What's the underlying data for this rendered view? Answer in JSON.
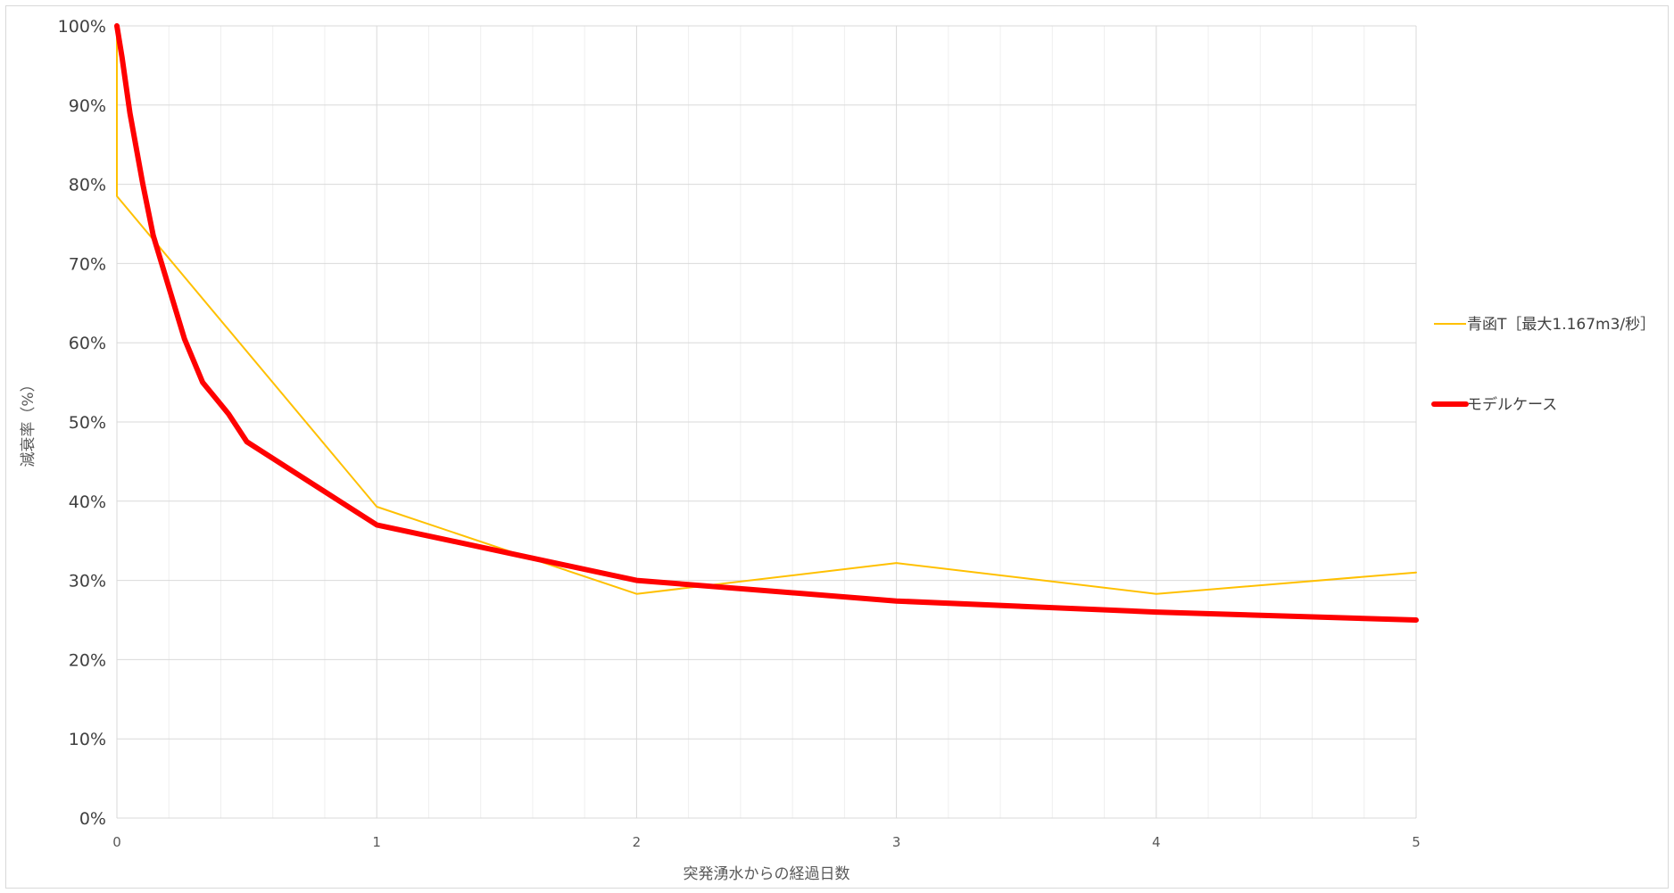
{
  "chart_data": {
    "type": "line",
    "title": "",
    "xlabel": "突発湧水からの経過日数",
    "ylabel": "減衰率（%）",
    "xlim": [
      0,
      5
    ],
    "ylim": [
      0,
      1
    ],
    "x_ticks": [
      0,
      1,
      2,
      3,
      4,
      5
    ],
    "x_tick_labels": [
      "0",
      "1",
      "2",
      "3",
      "4",
      "5"
    ],
    "y_ticks": [
      0,
      0.1,
      0.2,
      0.3,
      0.4,
      0.5,
      0.6,
      0.7,
      0.8,
      0.9,
      1.0
    ],
    "y_tick_labels": [
      "0%",
      "10%",
      "20%",
      "30%",
      "40%",
      "50%",
      "60%",
      "70%",
      "80%",
      "90%",
      "100%"
    ],
    "x_minor_step": 0.2,
    "grid": true,
    "legend_position": "right",
    "series": [
      {
        "name": "青函T［最大1.167m3/秒］",
        "color": "#FFC000",
        "width": 2,
        "x": [
          0,
          0,
          1,
          2,
          3,
          4,
          5
        ],
        "y": [
          1.0,
          0.785,
          0.393,
          0.283,
          0.322,
          0.283,
          0.31
        ]
      },
      {
        "name": "モデルケース",
        "color": "#FF0000",
        "width": 6,
        "x": [
          0,
          0.02,
          0.05,
          0.1,
          0.14,
          0.2,
          0.26,
          0.33,
          0.38,
          0.43,
          0.5,
          1,
          2,
          3,
          4,
          5
        ],
        "y": [
          1.0,
          0.96,
          0.89,
          0.8,
          0.735,
          0.67,
          0.605,
          0.55,
          0.53,
          0.51,
          0.475,
          0.37,
          0.3,
          0.274,
          0.26,
          0.25
        ]
      }
    ]
  }
}
